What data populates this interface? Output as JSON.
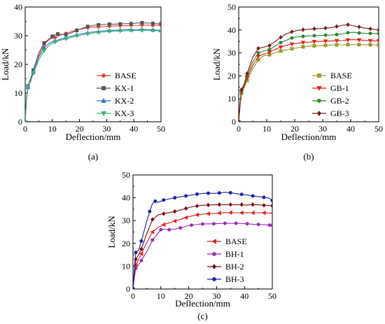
{
  "chart_data": [
    {
      "type": "line",
      "caption": "(a)",
      "xlabel": "Deflection/mm",
      "ylabel": "Load/kN",
      "xlim": [
        0,
        50
      ],
      "ylim": [
        0,
        40
      ],
      "xticks": [
        "0",
        "10",
        "20",
        "30",
        "40",
        "50"
      ],
      "yticks": [
        "0",
        "10",
        "20",
        "30",
        "40"
      ],
      "legend_position": "bottom-right",
      "grid": false,
      "series": [
        {
          "name": "BASE",
          "color": "#e8413c",
          "marker": "circle",
          "x": [
            0,
            0.5,
            1,
            2,
            3,
            5,
            7,
            9,
            11,
            13,
            15,
            17,
            19,
            21,
            23,
            25,
            27,
            29,
            31,
            33,
            35,
            37,
            39,
            41,
            43,
            45,
            47,
            49,
            50
          ],
          "y": [
            0,
            8,
            12,
            14,
            17,
            23,
            27,
            28.8,
            29.4,
            30.2,
            30.8,
            31.4,
            32,
            32.4,
            32.8,
            33,
            33.1,
            33.2,
            33.3,
            33.4,
            33.5,
            33.5,
            33.6,
            33.6,
            33.7,
            33.7,
            33.6,
            33.7,
            33.6
          ]
        },
        {
          "name": "KX-1",
          "color": "#555555",
          "marker": "square",
          "x": [
            0,
            0.5,
            1,
            2,
            3,
            5,
            7,
            9,
            10,
            11,
            12,
            13,
            15,
            17,
            19,
            21,
            23,
            25,
            27,
            29,
            31,
            33,
            35,
            37,
            39,
            41,
            43,
            45,
            47,
            49,
            50
          ],
          "y": [
            0,
            9,
            12.5,
            15,
            18,
            24,
            27.5,
            29,
            29.8,
            30.3,
            30.6,
            30.5,
            30.4,
            31,
            31.8,
            32.6,
            33.2,
            33.6,
            33.8,
            33.9,
            34,
            34,
            34.1,
            34.2,
            34.2,
            34.4,
            34.5,
            34.4,
            34.3,
            34.2,
            34.2
          ]
        },
        {
          "name": "KX-2",
          "color": "#2f73d6",
          "marker": "triangle-up",
          "x": [
            0,
            0.5,
            1,
            2,
            3,
            5,
            7,
            9,
            11,
            13,
            15,
            17,
            19,
            21,
            23,
            25,
            27,
            29,
            31,
            33,
            35,
            37,
            39,
            41,
            43,
            45,
            47,
            49,
            50
          ],
          "y": [
            0,
            8.5,
            12,
            14.5,
            17.5,
            22.5,
            25.8,
            27.5,
            28.2,
            28.8,
            29.3,
            29.8,
            30.3,
            30.7,
            31,
            31.3,
            31.5,
            31.7,
            31.8,
            31.9,
            32,
            32.1,
            32.1,
            32,
            32.2,
            32.1,
            32,
            31.9,
            31.8
          ]
        },
        {
          "name": "KX-3",
          "color": "#3cb371",
          "marker": "triangle-down",
          "x": [
            0,
            0.5,
            1,
            2,
            3,
            5,
            7,
            9,
            11,
            13,
            15,
            17,
            19,
            21,
            23,
            25,
            27,
            29,
            31,
            33,
            35,
            37,
            39,
            41,
            43,
            45,
            47,
            49,
            50
          ],
          "y": [
            0,
            9,
            12.2,
            14.2,
            17,
            21.5,
            24.8,
            26.8,
            27.8,
            28.4,
            28.9,
            29.4,
            29.9,
            30.3,
            30.6,
            30.9,
            31.1,
            31.3,
            31.5,
            31.6,
            31.6,
            31.7,
            31.8,
            31.8,
            31.8,
            31.9,
            31.8,
            31.7,
            31.6
          ]
        }
      ]
    },
    {
      "type": "line",
      "caption": "(b)",
      "xlabel": "Deflection/mm",
      "ylabel": "Load/kN",
      "xlim": [
        0,
        50
      ],
      "ylim": [
        0,
        50
      ],
      "xticks": [
        "0",
        "10",
        "20",
        "30",
        "40",
        "50"
      ],
      "yticks": [
        "0",
        "10",
        "20",
        "30",
        "40",
        "50"
      ],
      "legend_position": "bottom-right",
      "grid": false,
      "series": [
        {
          "name": "BASE",
          "color": "#9a9a2a",
          "marker": "square",
          "x": [
            0,
            0.5,
            1,
            2,
            3,
            5,
            7,
            9,
            11,
            13,
            15,
            17,
            19,
            21,
            23,
            25,
            27,
            29,
            31,
            33,
            35,
            37,
            39,
            41,
            43,
            45,
            47,
            49,
            50
          ],
          "y": [
            0,
            7,
            12.5,
            15,
            18,
            23,
            27,
            28.8,
            29.2,
            30,
            30.8,
            31.3,
            31.8,
            32.2,
            32.6,
            32.9,
            33.1,
            33.2,
            33.3,
            33.4,
            33.5,
            33.5,
            33.6,
            33.6,
            33.6,
            33.6,
            33.5,
            33.5,
            33.5
          ]
        },
        {
          "name": "GB-1",
          "color": "#e8231c",
          "marker": "triangle-down",
          "x": [
            0,
            0.5,
            1,
            2,
            3,
            5,
            7,
            9,
            11,
            13,
            15,
            17,
            19,
            21,
            23,
            25,
            27,
            29,
            31,
            33,
            35,
            37,
            39,
            41,
            43,
            45,
            47,
            49,
            50
          ],
          "y": [
            0,
            7.5,
            13,
            15.5,
            19,
            24.5,
            28.5,
            29.5,
            30.3,
            31.5,
            32.5,
            33.3,
            33.8,
            34.2,
            34.5,
            34.7,
            34.9,
            35,
            35.1,
            35.2,
            35.3,
            35.4,
            35.6,
            35.8,
            35.6,
            35.5,
            35.3,
            35.2,
            35.2
          ]
        },
        {
          "name": "GB-2",
          "color": "#2e8b2e",
          "marker": "circle",
          "x": [
            0,
            0.5,
            1,
            2,
            3,
            5,
            7,
            9,
            11,
            13,
            15,
            17,
            19,
            21,
            23,
            25,
            27,
            29,
            31,
            33,
            35,
            37,
            39,
            41,
            43,
            45,
            47,
            49,
            50
          ],
          "y": [
            0,
            8,
            13.5,
            16,
            20,
            26,
            30,
            30.8,
            31.5,
            33,
            34.5,
            35.5,
            36.5,
            37,
            37.2,
            37.4,
            37.5,
            37.6,
            37.7,
            37.8,
            38,
            38.3,
            38.8,
            39,
            38.7,
            38.5,
            38.5,
            38.4,
            38.4
          ]
        },
        {
          "name": "GB-3",
          "color": "#7b1f1f",
          "marker": "diamond",
          "x": [
            0,
            0.5,
            1,
            2,
            3,
            5,
            7,
            9,
            11,
            13,
            15,
            17,
            19,
            21,
            23,
            25,
            27,
            29,
            31,
            33,
            35,
            37,
            39,
            41,
            43,
            45,
            47,
            49,
            50
          ],
          "y": [
            0,
            8.5,
            14,
            16.5,
            21,
            28,
            32,
            32.5,
            33.2,
            35,
            36.8,
            38.3,
            39.2,
            39.8,
            40.1,
            40.3,
            40.5,
            40.6,
            40.8,
            41,
            41.5,
            42,
            42.3,
            41.8,
            41.3,
            40.8,
            40.5,
            40.2,
            40
          ]
        }
      ]
    },
    {
      "type": "line",
      "caption": "(c)",
      "xlabel": "Deflection/mm",
      "ylabel": "Load/kN",
      "xlim": [
        0,
        50
      ],
      "ylim": [
        0,
        50
      ],
      "xticks": [
        "0",
        "10",
        "20",
        "30",
        "40",
        "50"
      ],
      "yticks": [
        "0",
        "10",
        "20",
        "30",
        "40",
        "50"
      ],
      "legend_position": "bottom-right",
      "grid": false,
      "series": [
        {
          "name": "BASE",
          "color": "#e02828",
          "marker": "triangle-left",
          "x": [
            0,
            0.5,
            1,
            2,
            3,
            5,
            7,
            9,
            11,
            13,
            15,
            17,
            19,
            21,
            23,
            25,
            27,
            29,
            31,
            33,
            35,
            37,
            39,
            41,
            43,
            45,
            47,
            49,
            50
          ],
          "y": [
            0,
            6,
            10.5,
            13,
            15.5,
            20.5,
            25,
            27,
            28.2,
            29,
            29.8,
            30.5,
            31.3,
            32,
            32.5,
            32.8,
            33,
            33.1,
            33.3,
            33.5,
            33.5,
            33.4,
            33.4,
            33.5,
            33.4,
            33.4,
            33.4,
            33.3,
            33.3
          ]
        },
        {
          "name": "BH-1",
          "color": "#9b30b4",
          "marker": "circle",
          "x": [
            0,
            0.5,
            1,
            2,
            3,
            5,
            7,
            9,
            10,
            11,
            13,
            15,
            17,
            19,
            21,
            23,
            25,
            27,
            29,
            31,
            33,
            35,
            37,
            39,
            41,
            43,
            45,
            47,
            49,
            50
          ],
          "y": [
            0,
            5,
            9,
            10.5,
            12.5,
            16.5,
            21.5,
            24.5,
            26,
            26.2,
            26,
            26.2,
            26.8,
            27.5,
            28,
            28.3,
            28.5,
            28.6,
            28.6,
            28.7,
            28.8,
            28.8,
            28.8,
            28.7,
            28.6,
            28.4,
            28.3,
            28.2,
            28,
            28
          ]
        },
        {
          "name": "BH-2",
          "color": "#7a1212",
          "marker": "diamond",
          "x": [
            0,
            0.5,
            1,
            2,
            3,
            5,
            7,
            9,
            11,
            13,
            15,
            17,
            19,
            21,
            23,
            25,
            27,
            29,
            31,
            33,
            35,
            37,
            39,
            41,
            43,
            45,
            47,
            49,
            50
          ],
          "y": [
            0,
            7,
            13,
            15,
            17.5,
            24.5,
            30.5,
            32.5,
            33,
            33.5,
            34,
            34.6,
            35.3,
            36,
            36.4,
            36.7,
            36.8,
            36.9,
            37,
            36.9,
            37,
            36.9,
            37,
            36.8,
            37,
            36.9,
            36.7,
            36.6,
            36.5
          ]
        },
        {
          "name": "BH-3",
          "color": "#1a23a8",
          "marker": "circle",
          "x": [
            0,
            0.5,
            1,
            2,
            3,
            5,
            6,
            7,
            8,
            9,
            11,
            13,
            15,
            17,
            19,
            21,
            23,
            25,
            27,
            29,
            31,
            33,
            35,
            37,
            39,
            41,
            43,
            45,
            47,
            49,
            50
          ],
          "y": [
            0,
            9,
            16,
            17,
            21,
            30,
            34,
            37.5,
            38.5,
            38,
            39,
            39.5,
            40,
            40.4,
            40.8,
            41.2,
            41.6,
            41.9,
            42,
            41.9,
            42.1,
            42.4,
            42.2,
            41.8,
            41.5,
            41.2,
            40.8,
            40.5,
            40.2,
            39.8,
            38.8
          ]
        }
      ]
    }
  ]
}
